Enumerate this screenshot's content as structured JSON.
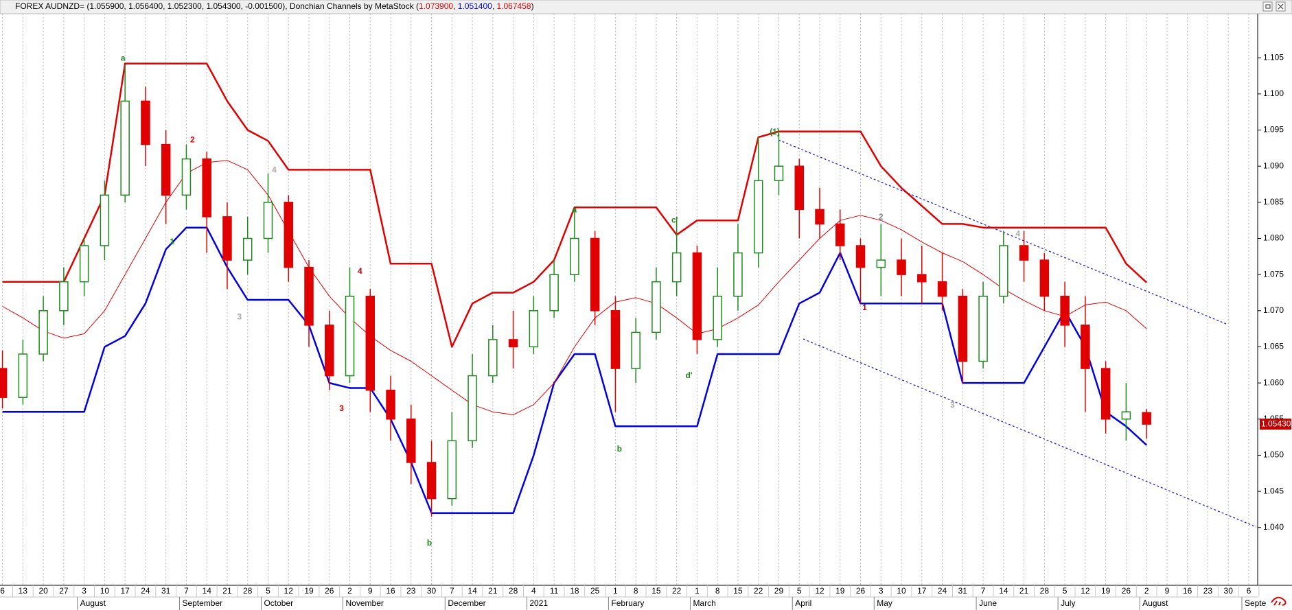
{
  "chart_data": {
    "type": "candlestick",
    "title": "FOREX AUDNZD= (1.055900, 1.056400, 1.052300, 1.054300, -0.001500), Donchian Channels by MetaStock (",
    "indicator_values": [
      {
        "label": "1.073900",
        "color": "#e00000"
      },
      {
        "label": "1.051400",
        "color": "#0000e0"
      },
      {
        "label": "1.067458",
        "color": "#e00000"
      }
    ],
    "title_end": ")",
    "categories": [
      "6",
      "13",
      "20",
      "27",
      "3",
      "10",
      "17",
      "24",
      "31",
      "7",
      "14",
      "21",
      "28",
      "5",
      "12",
      "19",
      "26",
      "2",
      "9",
      "16",
      "23",
      "30",
      "7",
      "14",
      "21",
      "28",
      "4",
      "11",
      "18",
      "25",
      "1",
      "8",
      "15",
      "22",
      "1",
      "8",
      "15",
      "22",
      "29",
      "5",
      "12",
      "19",
      "26",
      "3",
      "10",
      "17",
      "24",
      "31",
      "7",
      "14",
      "21",
      "28",
      "5",
      "12",
      "19",
      "26",
      "2",
      "9",
      "16",
      "23",
      "30",
      "6"
    ],
    "months": [
      null,
      null,
      null,
      null,
      "August",
      null,
      null,
      null,
      null,
      "September",
      null,
      null,
      null,
      "October",
      null,
      null,
      null,
      "November",
      null,
      null,
      null,
      null,
      "December",
      null,
      null,
      null,
      "2021",
      null,
      null,
      null,
      "February",
      null,
      null,
      null,
      "March",
      null,
      null,
      null,
      null,
      "April",
      null,
      null,
      null,
      "May",
      null,
      null,
      null,
      null,
      "June",
      null,
      null,
      null,
      "July",
      null,
      null,
      null,
      "August",
      null,
      null,
      null,
      null,
      "Septe"
    ],
    "open": [
      1.062,
      1.058,
      1.064,
      1.07,
      1.074,
      1.079,
      1.086,
      1.099,
      1.093,
      1.086,
      1.091,
      1.083,
      1.077,
      1.08,
      1.085,
      1.076,
      1.068,
      1.061,
      1.072,
      1.059,
      1.055,
      1.049,
      1.044,
      1.052,
      1.061,
      1.066,
      1.065,
      1.07,
      1.075,
      1.08,
      1.07,
      1.062,
      1.067,
      1.074,
      1.078,
      1.066,
      1.072,
      1.078,
      1.088,
      1.09,
      1.084,
      1.082,
      1.079,
      1.076,
      1.077,
      1.075,
      1.074,
      1.072,
      1.063,
      1.072,
      1.079,
      1.077,
      1.072,
      1.068,
      1.062,
      1.055,
      1.0559,
      null,
      null,
      null,
      null,
      null
    ],
    "high": [
      1.0645,
      1.066,
      1.072,
      1.076,
      1.08,
      1.088,
      1.104,
      1.101,
      1.095,
      1.093,
      1.092,
      1.085,
      1.083,
      1.089,
      1.086,
      1.077,
      1.07,
      1.076,
      1.073,
      1.061,
      1.057,
      1.052,
      1.056,
      1.064,
      1.068,
      1.07,
      1.072,
      1.077,
      1.084,
      1.081,
      1.072,
      1.069,
      1.076,
      1.083,
      1.079,
      1.076,
      1.082,
      1.094,
      1.0945,
      1.091,
      1.087,
      1.084,
      1.08,
      1.082,
      1.08,
      1.079,
      1.078,
      1.073,
      1.074,
      1.081,
      1.081,
      1.078,
      1.074,
      1.072,
      1.063,
      1.06,
      1.0564,
      null,
      null,
      null,
      null,
      null
    ],
    "low": [
      1.0565,
      1.057,
      1.063,
      1.068,
      1.072,
      1.077,
      1.085,
      1.09,
      1.082,
      1.084,
      1.078,
      1.073,
      1.075,
      1.078,
      1.074,
      1.065,
      1.059,
      1.06,
      1.056,
      1.052,
      1.046,
      1.0415,
      1.043,
      1.051,
      1.06,
      1.062,
      1.064,
      1.069,
      1.074,
      1.068,
      1.056,
      1.06,
      1.066,
      1.072,
      1.064,
      1.065,
      1.07,
      1.076,
      1.086,
      1.08,
      1.08,
      1.077,
      1.071,
      1.072,
      1.072,
      1.071,
      1.07,
      1.06,
      1.062,
      1.071,
      1.074,
      1.07,
      1.065,
      1.056,
      1.053,
      1.052,
      1.0523,
      null,
      null,
      null,
      null,
      null
    ],
    "close": [
      1.058,
      1.064,
      1.07,
      1.074,
      1.079,
      1.086,
      1.099,
      1.093,
      1.086,
      1.091,
      1.083,
      1.077,
      1.08,
      1.085,
      1.076,
      1.068,
      1.061,
      1.072,
      1.059,
      1.055,
      1.049,
      1.044,
      1.052,
      1.061,
      1.066,
      1.065,
      1.07,
      1.075,
      1.08,
      1.07,
      1.062,
      1.067,
      1.074,
      1.078,
      1.066,
      1.072,
      1.078,
      1.088,
      1.09,
      1.084,
      1.082,
      1.079,
      1.076,
      1.077,
      1.075,
      1.074,
      1.072,
      1.063,
      1.072,
      1.079,
      1.077,
      1.072,
      1.068,
      1.062,
      1.055,
      1.056,
      1.0543,
      null,
      null,
      null,
      null,
      null
    ],
    "up_color": "#1e8a1e",
    "down_color": "#e00000",
    "series": [
      {
        "color": "#e00000",
        "width": 2.5,
        "values": [
          1.074,
          1.074,
          1.074,
          1.074,
          1.08,
          1.086,
          1.1042,
          1.1042,
          1.1042,
          1.1042,
          1.1042,
          1.099,
          1.095,
          1.0935,
          1.0895,
          1.0895,
          1.0895,
          1.0895,
          1.0895,
          1.0765,
          1.0765,
          1.0765,
          1.065,
          1.071,
          1.0725,
          1.0725,
          1.074,
          1.077,
          1.0843,
          1.0843,
          1.0843,
          1.0843,
          1.0843,
          1.0805,
          1.0825,
          1.0825,
          1.0825,
          1.094,
          1.0948,
          1.0948,
          1.0948,
          1.0948,
          1.0948,
          1.09,
          1.087,
          1.0845,
          1.082,
          1.082,
          1.0815,
          1.0815,
          1.0815,
          1.0815,
          1.0815,
          1.0815,
          1.0815,
          1.0765,
          1.0739,
          null,
          null,
          null,
          null,
          null
        ]
      },
      {
        "color": "#0000e0",
        "width": 2.5,
        "values": [
          1.056,
          1.056,
          1.056,
          1.056,
          1.056,
          1.065,
          1.0665,
          1.071,
          1.0785,
          1.0815,
          1.0815,
          1.076,
          1.0715,
          1.0715,
          1.0715,
          1.068,
          1.06,
          1.0593,
          1.0593,
          1.055,
          1.049,
          1.042,
          1.042,
          1.042,
          1.042,
          1.042,
          1.05,
          1.06,
          1.064,
          1.064,
          1.054,
          1.054,
          1.054,
          1.054,
          1.054,
          1.064,
          1.064,
          1.064,
          1.064,
          1.071,
          1.0725,
          1.078,
          1.071,
          1.071,
          1.071,
          1.071,
          1.071,
          1.06,
          1.06,
          1.06,
          1.06,
          1.065,
          1.07,
          1.065,
          1.056,
          1.054,
          1.0514,
          null,
          null,
          null,
          null,
          null
        ]
      },
      {
        "color": "#e00000",
        "width": 1,
        "values": [
          1.0706,
          1.069,
          1.0672,
          1.0662,
          1.0668,
          1.07,
          1.075,
          1.08,
          1.085,
          1.089,
          1.0905,
          1.0908,
          1.0895,
          1.086,
          1.081,
          1.076,
          1.072,
          1.069,
          1.0665,
          1.0645,
          1.063,
          1.061,
          1.059,
          1.057,
          1.056,
          1.0556,
          1.057,
          1.06,
          1.065,
          1.069,
          1.0712,
          1.0718,
          1.071,
          1.069,
          1.0668,
          1.0675,
          1.069,
          1.0708,
          1.074,
          1.077,
          1.08,
          1.0825,
          1.0832,
          1.0825,
          1.0812,
          1.0795,
          1.078,
          1.0768,
          1.075,
          1.073,
          1.0714,
          1.07,
          1.0692,
          1.0708,
          1.0712,
          1.07,
          1.0675,
          null,
          null,
          null,
          null,
          null
        ]
      }
    ],
    "annotations": [
      {
        "text": "a",
        "x": 5.9,
        "y": 1.1049,
        "color": "#1e8a1e"
      },
      {
        "text": "1",
        "x": 8.3,
        "y": 1.0795,
        "color": "#1e8a1e"
      },
      {
        "text": "2",
        "x": 9.3,
        "y": 1.0936,
        "color": "#e00000"
      },
      {
        "text": "3",
        "x": 11.6,
        "y": 1.0691,
        "color": "#aaaaaa"
      },
      {
        "text": "4",
        "x": 13.3,
        "y": 1.0894,
        "color": "#aaaaaa"
      },
      {
        "text": "3",
        "x": 16.6,
        "y": 1.0564,
        "color": "#c00000"
      },
      {
        "text": "4",
        "x": 17.5,
        "y": 1.0754,
        "color": "#c00000"
      },
      {
        "text": "b",
        "x": 20.9,
        "y": 1.0378,
        "color": "#1e8a1e"
      },
      {
        "text": "a",
        "x": 28.0,
        "y": 1.0839,
        "color": "#1e8a1e"
      },
      {
        "text": "b",
        "x": 30.2,
        "y": 1.0508,
        "color": "#1e8a1e"
      },
      {
        "text": "c'",
        "x": 32.9,
        "y": 1.0825,
        "color": "#1e8a1e"
      },
      {
        "text": "d'",
        "x": 33.6,
        "y": 1.061,
        "color": "#1e8a1e"
      },
      {
        "text": "(1)",
        "x": 37.8,
        "y": 1.0947,
        "color": "#1e8a1e"
      },
      {
        "text": "1",
        "x": 42.2,
        "y": 1.0704,
        "color": "#c00000"
      },
      {
        "text": "2",
        "x": 43.0,
        "y": 1.0829,
        "color": "#888888"
      },
      {
        "text": "3",
        "x": 46.5,
        "y": 1.0569,
        "color": "#aaaaaa"
      },
      {
        "text": "4",
        "x": 49.7,
        "y": 1.0806,
        "color": "#aaaaaa"
      }
    ],
    "last_price": {
      "value": 1.0543,
      "label": "1.05430"
    },
    "ylim": [
      1.032,
      1.111
    ],
    "yticks": [
      {
        "value": 1.04,
        "label": "1.040"
      },
      1.045,
      {
        "value": 1.05,
        "label": "1.050"
      },
      1.055,
      {
        "value": 1.06,
        "label": "1.060"
      },
      1.065,
      {
        "value": 1.07,
        "label": "1.070"
      },
      1.075,
      {
        "value": 1.08,
        "label": "1.080"
      },
      1.085,
      {
        "value": 1.09,
        "label": "1.090"
      },
      1.095,
      {
        "value": 1.1,
        "label": "1.100"
      },
      1.105
    ],
    "grid": true
  }
}
